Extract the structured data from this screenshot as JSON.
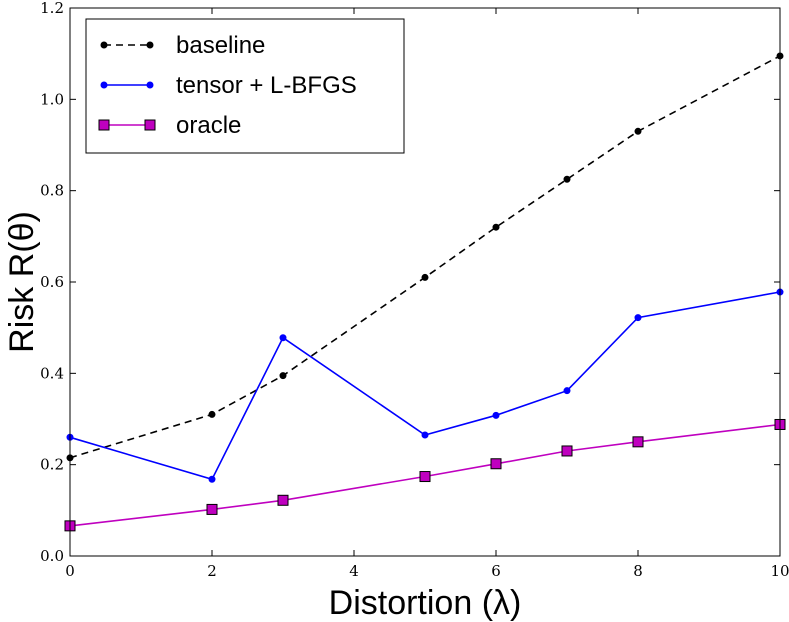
{
  "chart_data": {
    "type": "line",
    "xlabel": "Distortion (λ)",
    "ylabel": "Risk R(θ)",
    "xlim": [
      0,
      10
    ],
    "ylim": [
      0,
      1.2
    ],
    "xticks": [
      "0",
      "2",
      "4",
      "6",
      "8",
      "10"
    ],
    "yticks": [
      "0.0",
      "0.2",
      "0.4",
      "0.6",
      "0.8",
      "1.0",
      "1.2"
    ],
    "grid": false,
    "legend_position": "top-left",
    "series": [
      {
        "name": "baseline",
        "color": "#000000",
        "style": "dashed",
        "marker": "dot",
        "x": [
          0,
          2,
          3,
          5,
          6,
          7,
          8,
          10
        ],
        "y": [
          0.215,
          0.31,
          0.395,
          0.61,
          0.72,
          0.825,
          0.93,
          1.095
        ]
      },
      {
        "name": "tensor + L-BFGS",
        "color": "#0000ff",
        "style": "solid",
        "marker": "dot",
        "x": [
          0,
          2,
          3,
          5,
          6,
          7,
          8,
          10
        ],
        "y": [
          0.26,
          0.168,
          0.478,
          0.265,
          0.308,
          0.362,
          0.522,
          0.578
        ]
      },
      {
        "name": "oracle",
        "color": "#bf00bf",
        "style": "solid",
        "marker": "square",
        "x": [
          0,
          2,
          3,
          5,
          6,
          7,
          8,
          10
        ],
        "y": [
          0.066,
          0.102,
          0.122,
          0.174,
          0.202,
          0.23,
          0.25,
          0.288
        ]
      }
    ]
  }
}
